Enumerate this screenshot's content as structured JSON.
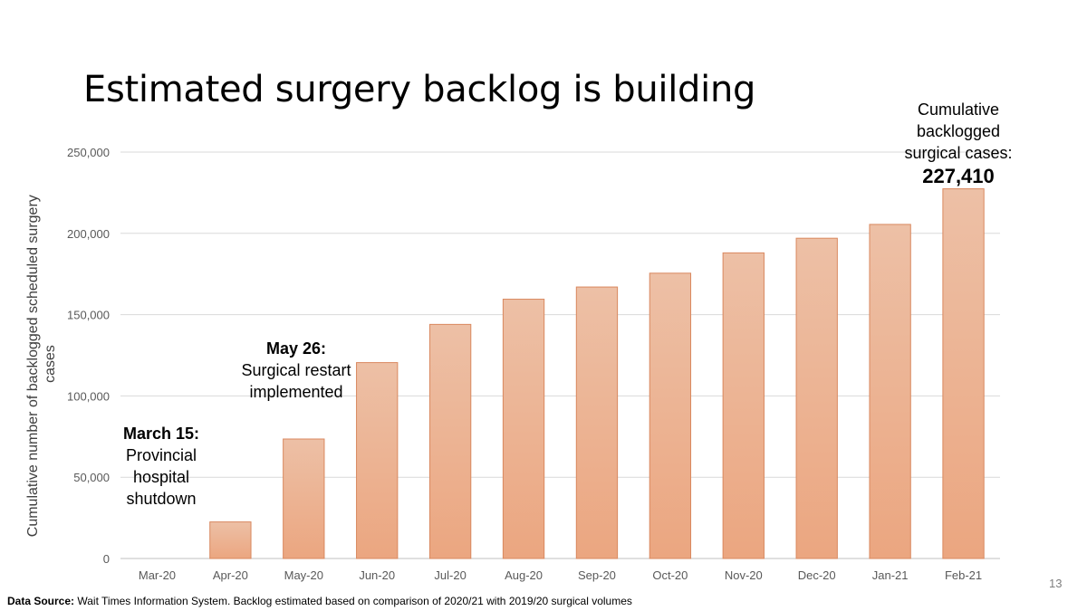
{
  "slide": {
    "title": "Estimated surgery backlog is building",
    "page_number": "13",
    "source_label": "Data Source:",
    "source_text": " Wait Times Information System. Backlog estimated based on comparison of 2020/21 with 2019/20 surgical volumes"
  },
  "annotations": {
    "march": {
      "head": "March 15:",
      "lines": [
        "Provincial",
        "hospital",
        "shutdown"
      ]
    },
    "may": {
      "head": "May 26:",
      "lines": [
        "Surgical restart",
        "implemented"
      ]
    },
    "final": {
      "lines": [
        "Cumulative",
        "backlogged",
        "surgical cases:"
      ],
      "value": "227,410"
    }
  },
  "colors": {
    "bar_top": "#edc0a6",
    "bar_bottom": "#eba680",
    "bar_stroke": "#d9885f",
    "grid": "#d9d9d9"
  },
  "chart_data": {
    "type": "bar",
    "title": "Estimated surgery backlog is building",
    "ylabel": "Cumulative number of backlogged scheduled surgery cases",
    "ylabel_lines": [
      "Cumulative number of backlogged scheduled surgery",
      "cases"
    ],
    "xlabel": "",
    "categories": [
      "Mar-20",
      "Apr-20",
      "May-20",
      "Jun-20",
      "Jul-20",
      "Aug-20",
      "Sep-20",
      "Oct-20",
      "Nov-20",
      "Dec-20",
      "Jan-21",
      "Feb-21"
    ],
    "values": [
      0,
      22500,
      73500,
      120500,
      144000,
      159500,
      167000,
      175500,
      188000,
      197000,
      205500,
      227410
    ],
    "ylim": [
      0,
      250000
    ],
    "yticks": [
      0,
      50000,
      100000,
      150000,
      200000,
      250000
    ],
    "ytick_labels": [
      "0",
      "50,000",
      "100,000",
      "150,000",
      "200,000",
      "250,000"
    ],
    "grid": true,
    "legend": "none"
  }
}
